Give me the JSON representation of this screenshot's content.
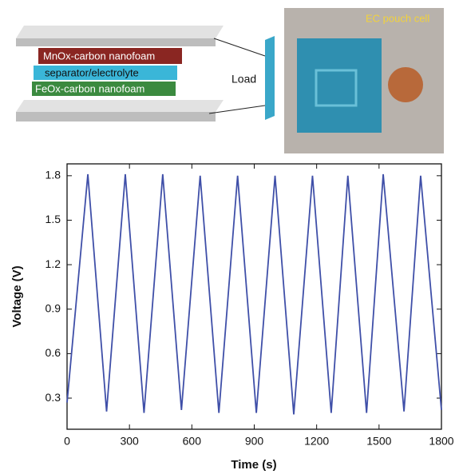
{
  "diagram": {
    "layers": [
      "MnOx-carbon nanofoam",
      "separator/electrolyte",
      "FeOx-carbon nanofoam"
    ],
    "load": "Load",
    "photo_label": "EC pouch cell"
  },
  "chart_data": {
    "type": "line",
    "x_label": "Time (s)",
    "y_label": "Voltage (V)",
    "x": [
      0,
      100,
      190,
      280,
      370,
      460,
      550,
      640,
      730,
      820,
      910,
      1000,
      1090,
      1180,
      1270,
      1350,
      1440,
      1520,
      1620,
      1700,
      1800
    ],
    "values": [
      0.27,
      1.81,
      0.21,
      1.81,
      0.2,
      1.81,
      0.22,
      1.8,
      0.2,
      1.8,
      0.2,
      1.8,
      0.19,
      1.8,
      0.2,
      1.8,
      0.2,
      1.81,
      0.21,
      1.8,
      0.22
    ],
    "color": "#3f4fa8",
    "xlim": [
      0,
      1800
    ],
    "xticks": [
      0,
      300,
      600,
      900,
      1200,
      1500,
      1800
    ],
    "ylim": [
      0.09,
      1.88
    ],
    "yticks": [
      0.3,
      0.6,
      0.9,
      1.2,
      1.5,
      1.8
    ]
  }
}
